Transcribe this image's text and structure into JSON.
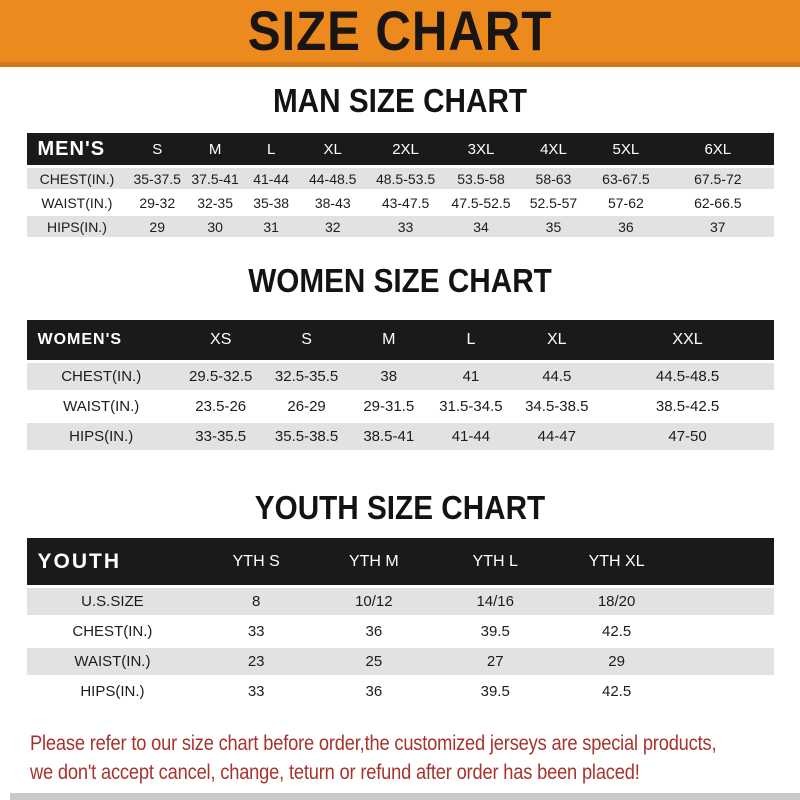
{
  "banner": {
    "title": "SIZE CHART"
  },
  "men": {
    "heading": "MAN SIZE CHART",
    "table": {
      "label": "MEN'S",
      "columns": [
        "S",
        "M",
        "L",
        "XL",
        "2XL",
        "3XL",
        "4XL",
        "5XL",
        "6XL"
      ],
      "rows": [
        {
          "label": "CHEST(IN.)",
          "values": [
            "35-37.5",
            "37.5-41",
            "41-44",
            "44-48.5",
            "48.5-53.5",
            "53.5-58",
            "58-63",
            "63-67.5",
            "67.5-72"
          ]
        },
        {
          "label": "WAIST(IN.)",
          "values": [
            "29-32",
            "32-35",
            "35-38",
            "38-43",
            "43-47.5",
            "47.5-52.5",
            "52.5-57",
            "57-62",
            "62-66.5"
          ]
        },
        {
          "label": "HIPS(IN.)",
          "values": [
            "29",
            "30",
            "31",
            "32",
            "33",
            "34",
            "35",
            "36",
            "37"
          ]
        }
      ]
    }
  },
  "women": {
    "heading": "WOMEN SIZE CHART",
    "table": {
      "label": "WOMEN'S",
      "columns": [
        "XS",
        "S",
        "M",
        "L",
        "XL",
        "XXL"
      ],
      "rows": [
        {
          "label": "CHEST(IN.)",
          "values": [
            "29.5-32.5",
            "32.5-35.5",
            "38",
            "41",
            "44.5",
            "44.5-48.5"
          ]
        },
        {
          "label": "WAIST(IN.)",
          "values": [
            "23.5-26",
            "26-29",
            "29-31.5",
            "31.5-34.5",
            "34.5-38.5",
            "38.5-42.5"
          ]
        },
        {
          "label": "HIPS(IN.)",
          "values": [
            "33-35.5",
            "35.5-38.5",
            "38.5-41",
            "41-44",
            "44-47",
            "47-50"
          ]
        }
      ]
    }
  },
  "youth": {
    "heading": "YOUTH SIZE CHART",
    "table": {
      "label": "YOUTH",
      "columns": [
        "YTH S",
        "YTH M",
        "YTH L",
        "YTH XL"
      ],
      "rows": [
        {
          "label": "U.S.SIZE",
          "values": [
            "8",
            "10/12",
            "14/16",
            "18/20"
          ]
        },
        {
          "label": "CHEST(IN.)",
          "values": [
            "33",
            "36",
            "39.5",
            "42.5"
          ]
        },
        {
          "label": "WAIST(IN.)",
          "values": [
            "23",
            "25",
            "27",
            "29"
          ]
        },
        {
          "label": "HIPS(IN.)",
          "values": [
            "33",
            "36",
            "39.5",
            "42.5"
          ]
        }
      ]
    }
  },
  "footer": {
    "line1": "Please refer to our size chart before order,the customized jerseys are special products,",
    "line2": "we don't accept cancel, change, teturn or refund after order has been placed!"
  },
  "colors": {
    "banner_orange": "#EC8A1E",
    "banner_edge": "#D4791A",
    "header_black": "#1A1A1A",
    "row_gray": "#E3E2E0",
    "note_red": "#A8332D"
  }
}
